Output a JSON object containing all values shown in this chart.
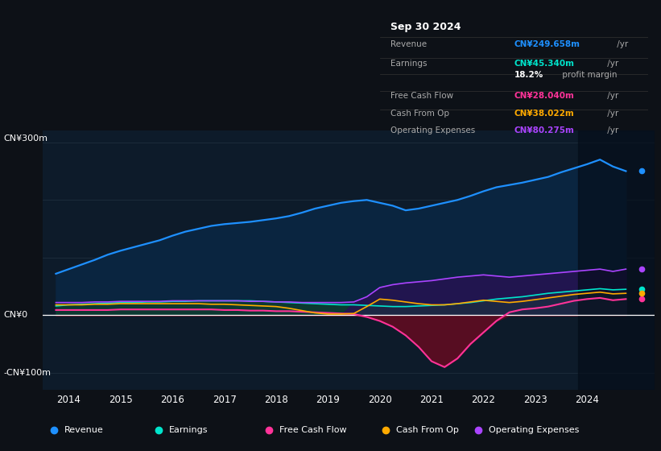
{
  "background_color": "#0d1117",
  "chart_bg_color": "#0d1b2a",
  "grid_color": "#253545",
  "title_box": {
    "date": "Sep 30 2024",
    "rows": [
      {
        "label": "Revenue",
        "value": "CN¥249.658m",
        "unit": " /yr",
        "color": "#1e90ff"
      },
      {
        "label": "Earnings",
        "value": "CN¥45.340m",
        "unit": " /yr",
        "color": "#00e5cc"
      },
      {
        "label": "",
        "value": "18.2%",
        "unit": " profit margin",
        "color": "#ffffff"
      },
      {
        "label": "Free Cash Flow",
        "value": "CN¥28.040m",
        "unit": " /yr",
        "color": "#ff3399"
      },
      {
        "label": "Cash From Op",
        "value": "CN¥38.022m",
        "unit": " /yr",
        "color": "#ffaa00"
      },
      {
        "label": "Operating Expenses",
        "value": "CN¥80.275m",
        "unit": " /yr",
        "color": "#aa44ff"
      }
    ]
  },
  "xlim_start": 2013.5,
  "xlim_end": 2025.3,
  "ylim": [
    -130,
    320
  ],
  "years": [
    2013.75,
    2014.0,
    2014.25,
    2014.5,
    2014.75,
    2015.0,
    2015.25,
    2015.5,
    2015.75,
    2016.0,
    2016.25,
    2016.5,
    2016.75,
    2017.0,
    2017.25,
    2017.5,
    2017.75,
    2018.0,
    2018.25,
    2018.5,
    2018.75,
    2019.0,
    2019.25,
    2019.5,
    2019.75,
    2020.0,
    2020.25,
    2020.5,
    2020.75,
    2021.0,
    2021.25,
    2021.5,
    2021.75,
    2022.0,
    2022.25,
    2022.5,
    2022.75,
    2023.0,
    2023.25,
    2023.5,
    2023.75,
    2024.0,
    2024.25,
    2024.5,
    2024.75
  ],
  "revenue": [
    72,
    80,
    88,
    96,
    105,
    112,
    118,
    124,
    130,
    138,
    145,
    150,
    155,
    158,
    160,
    162,
    165,
    168,
    172,
    178,
    185,
    190,
    195,
    198,
    200,
    195,
    190,
    182,
    185,
    190,
    195,
    200,
    207,
    215,
    222,
    226,
    230,
    235,
    240,
    248,
    255,
    262,
    270,
    258,
    250
  ],
  "earnings": [
    16,
    18,
    19,
    20,
    21,
    22,
    22,
    23,
    23,
    24,
    24,
    25,
    25,
    25,
    25,
    25,
    24,
    23,
    22,
    21,
    20,
    19,
    18,
    18,
    17,
    16,
    15,
    15,
    16,
    17,
    18,
    20,
    22,
    25,
    28,
    30,
    32,
    35,
    38,
    40,
    42,
    44,
    46,
    44,
    45
  ],
  "free_cash_flow": [
    9,
    9,
    9,
    9,
    9,
    10,
    10,
    10,
    10,
    10,
    10,
    10,
    10,
    9,
    9,
    8,
    8,
    7,
    7,
    6,
    5,
    4,
    3,
    2,
    -3,
    -10,
    -20,
    -35,
    -55,
    -80,
    -90,
    -75,
    -50,
    -30,
    -10,
    5,
    10,
    12,
    15,
    20,
    25,
    28,
    30,
    26,
    28
  ],
  "cash_from_op": [
    18,
    18,
    18,
    19,
    19,
    20,
    20,
    20,
    20,
    20,
    20,
    20,
    19,
    19,
    18,
    17,
    16,
    15,
    12,
    8,
    4,
    2,
    2,
    3,
    15,
    28,
    26,
    23,
    20,
    18,
    18,
    20,
    23,
    26,
    24,
    22,
    24,
    27,
    30,
    33,
    36,
    38,
    40,
    37,
    38
  ],
  "operating_expenses": [
    22,
    22,
    22,
    23,
    23,
    24,
    24,
    24,
    24,
    25,
    25,
    25,
    25,
    25,
    25,
    24,
    24,
    23,
    23,
    22,
    22,
    22,
    22,
    23,
    32,
    48,
    53,
    56,
    58,
    60,
    63,
    66,
    68,
    70,
    68,
    66,
    68,
    70,
    72,
    74,
    76,
    78,
    80,
    76,
    80
  ],
  "revenue_color": "#1e90ff",
  "earnings_color": "#00e5cc",
  "fcf_color": "#ff3399",
  "cashop_color": "#ffaa00",
  "opex_color": "#aa44ff",
  "revenue_fill": "#0a2540",
  "earnings_fill": "#0d3d30",
  "fcf_neg_fill": "#5c0d22",
  "opex_fill": "#2a1055",
  "xticks": [
    2014,
    2015,
    2016,
    2017,
    2018,
    2019,
    2020,
    2021,
    2022,
    2023,
    2024
  ],
  "ytick_positions": [
    -100,
    0,
    100,
    200,
    300
  ],
  "ytick_labels_left": [
    "-CN¥100m",
    "CN¥0",
    "",
    "",
    "CN¥300m"
  ],
  "dark_overlay_start": 2023.83,
  "dark_overlay_color": "#050d18"
}
